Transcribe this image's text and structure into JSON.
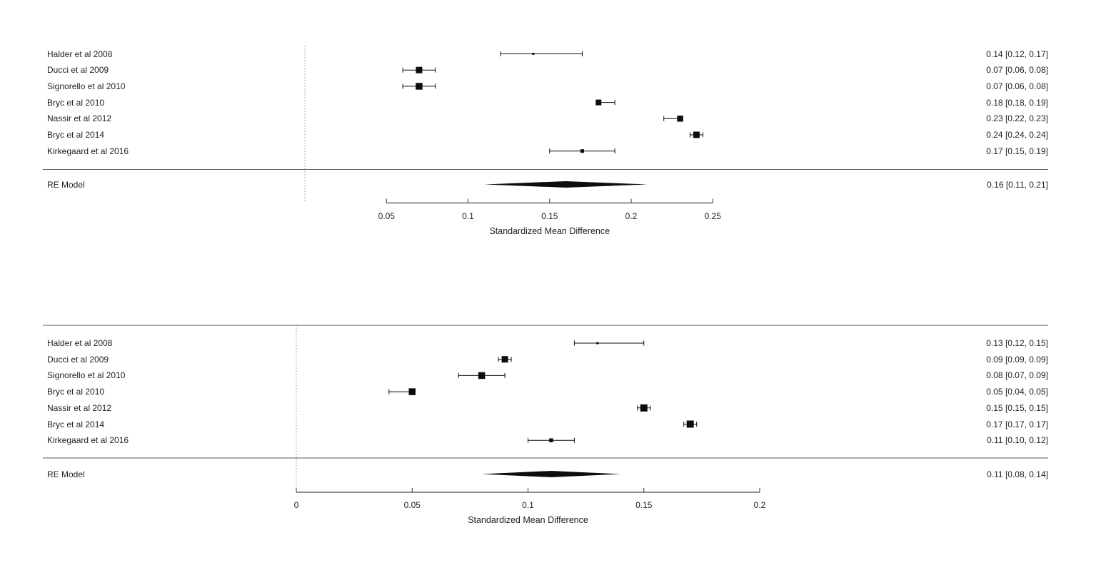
{
  "page": {
    "background_color": "#ffffff",
    "text_color": "#1f1f1f",
    "axis_line_color": "#4a4a4a",
    "separator_line_color": "#5a5a5a",
    "reference_line_color": "#8a8a8a",
    "marker_color": "#0d0d0d"
  },
  "chart_data": [
    {
      "type": "forest",
      "panel": "top",
      "xlabel": "Standardized Mean Difference",
      "axis_range": [
        0.05,
        0.25
      ],
      "axis_tick_values": [
        0.05,
        0.1,
        0.15,
        0.2,
        0.25
      ],
      "axis_ticks": [
        "0.05",
        "0.1",
        "0.15",
        "0.2",
        "0.25"
      ],
      "reference_line": 0,
      "grid": false,
      "studies": [
        {
          "label": "Halder et al 2008",
          "est": 0.14,
          "ci_low": 0.12,
          "ci_high": 0.17,
          "annotation": "0.14 [0.12, 0.17]",
          "marker_size_px": 3
        },
        {
          "label": "Ducci et al 2009",
          "est": 0.07,
          "ci_low": 0.06,
          "ci_high": 0.08,
          "annotation": "0.07 [0.06, 0.08]",
          "marker_size_px": 9
        },
        {
          "label": "Signorello et al 2010",
          "est": 0.07,
          "ci_low": 0.06,
          "ci_high": 0.08,
          "annotation": "0.07 [0.06, 0.08]",
          "marker_size_px": 9.5
        },
        {
          "label": "Bryc et al 2010",
          "est": 0.18,
          "ci_low": 0.18,
          "ci_high": 0.19,
          "annotation": "0.18 [0.18, 0.19]",
          "marker_size_px": 8
        },
        {
          "label": "Nassir et al 2012",
          "est": 0.23,
          "ci_low": 0.22,
          "ci_high": 0.23,
          "annotation": "0.23 [0.22, 0.23]",
          "marker_size_px": 8.5
        },
        {
          "label": "Bryc et al 2014",
          "est": 0.24,
          "ci_low": 0.24,
          "ci_high": 0.24,
          "annotation": "0.24 [0.24, 0.24]",
          "marker_size_px": 9
        },
        {
          "label": "Kirkegaard et al 2016",
          "est": 0.17,
          "ci_low": 0.15,
          "ci_high": 0.19,
          "annotation": "0.17 [0.15, 0.19]",
          "marker_size_px": 5
        }
      ],
      "summary": {
        "label": "RE Model",
        "est": 0.16,
        "ci_low": 0.11,
        "ci_high": 0.21,
        "annotation": "0.16 [0.11, 0.21]"
      }
    },
    {
      "type": "forest",
      "panel": "bottom",
      "xlabel": "Standardized Mean Difference",
      "axis_range": [
        0,
        0.2
      ],
      "axis_tick_values": [
        0,
        0.05,
        0.1,
        0.15,
        0.2
      ],
      "axis_ticks": [
        "0",
        "0.05",
        "0.1",
        "0.15",
        "0.2"
      ],
      "reference_line": 0,
      "grid": false,
      "studies": [
        {
          "label": "Halder et al 2008",
          "est": 0.13,
          "ci_low": 0.12,
          "ci_high": 0.15,
          "annotation": "0.13 [0.12, 0.15]",
          "marker_size_px": 3
        },
        {
          "label": "Ducci et al 2009",
          "est": 0.09,
          "ci_low": 0.09,
          "ci_high": 0.09,
          "annotation": "0.09 [0.09, 0.09]",
          "marker_size_px": 9
        },
        {
          "label": "Signorello et al 2010",
          "est": 0.08,
          "ci_low": 0.07,
          "ci_high": 0.09,
          "annotation": "0.08 [0.07, 0.09]",
          "marker_size_px": 9.5
        },
        {
          "label": "Bryc et al 2010",
          "est": 0.05,
          "ci_low": 0.04,
          "ci_high": 0.05,
          "annotation": "0.05 [0.04, 0.05]",
          "marker_size_px": 9.5
        },
        {
          "label": "Nassir et al 2012",
          "est": 0.15,
          "ci_low": 0.15,
          "ci_high": 0.15,
          "annotation": "0.15 [0.15, 0.15]",
          "marker_size_px": 10
        },
        {
          "label": "Bryc et al 2014",
          "est": 0.17,
          "ci_low": 0.17,
          "ci_high": 0.17,
          "annotation": "0.17 [0.17, 0.17]",
          "marker_size_px": 10
        },
        {
          "label": "Kirkegaard et al 2016",
          "est": 0.11,
          "ci_low": 0.1,
          "ci_high": 0.12,
          "annotation": "0.11 [0.10, 0.12]",
          "marker_size_px": 5.5
        }
      ],
      "summary": {
        "label": "RE Model",
        "est": 0.11,
        "ci_low": 0.08,
        "ci_high": 0.14,
        "annotation": "0.11 [0.08, 0.14]"
      }
    }
  ]
}
